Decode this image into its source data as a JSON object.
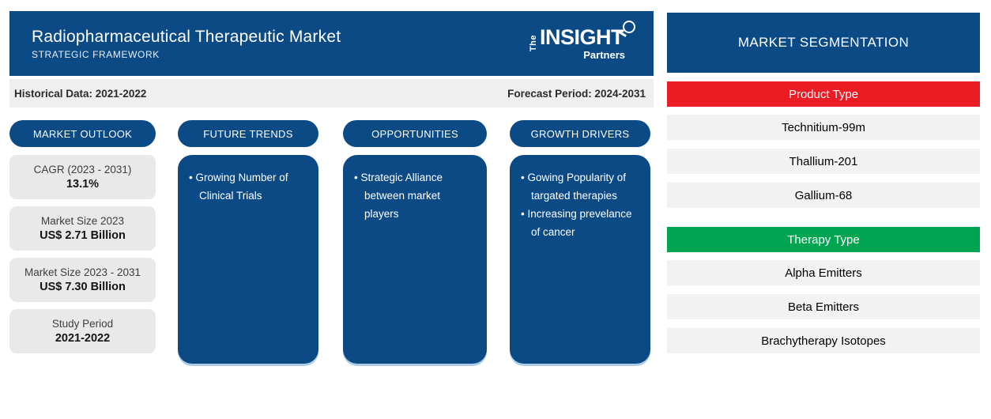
{
  "header": {
    "title": "Radiopharmaceutical Therapeutic Market",
    "subtitle": "STRATEGIC FRAMEWORK",
    "logo": {
      "the": "The",
      "insight": "INSIGHT",
      "partners": "Partners"
    }
  },
  "period_bar": {
    "historical": "Historical Data: 2021-2022",
    "forecast": "Forecast Period: 2024-2031"
  },
  "columns": {
    "market_outlook": {
      "header": "MARKET OUTLOOK",
      "stats": [
        {
          "label": "CAGR (2023 - 2031)",
          "value": "13.1%"
        },
        {
          "label": "Market Size 2023",
          "value": "US$ 2.71 Billion"
        },
        {
          "label": "Market Size 2023 - 2031",
          "value": "US$ 7.30 Billion"
        },
        {
          "label": "Study Period",
          "value": "2021-2022"
        }
      ]
    },
    "future_trends": {
      "header": "FUTURE TRENDS",
      "bullets": [
        "Growing Number of Clinical Trials"
      ]
    },
    "opportunities": {
      "header": "OPPORTUNITIES",
      "bullets": [
        "Strategic Alliance between market players"
      ]
    },
    "growth_drivers": {
      "header": "GROWTH DRIVERS",
      "bullets": [
        "Gowing Popularity of targated therapies",
        "Increasing prevelance of cancer"
      ]
    }
  },
  "segmentation": {
    "title": "MARKET SEGMENTATION",
    "groups": [
      {
        "name": "Product Type",
        "color": "#EC1C24",
        "items": [
          "Technitium-99m",
          "Thallium-201",
          "Gallium-68"
        ]
      },
      {
        "name": "Therapy Type",
        "color": "#00A551",
        "items": [
          "Alpha Emitters",
          "Beta Emitters",
          "Brachytherapy Isotopes"
        ]
      }
    ]
  },
  "colors": {
    "primary_blue": "#0B4A85",
    "product_type_red": "#EC1C24",
    "therapy_type_green": "#00A551",
    "shadow_light_blue": "#AECDE8"
  }
}
